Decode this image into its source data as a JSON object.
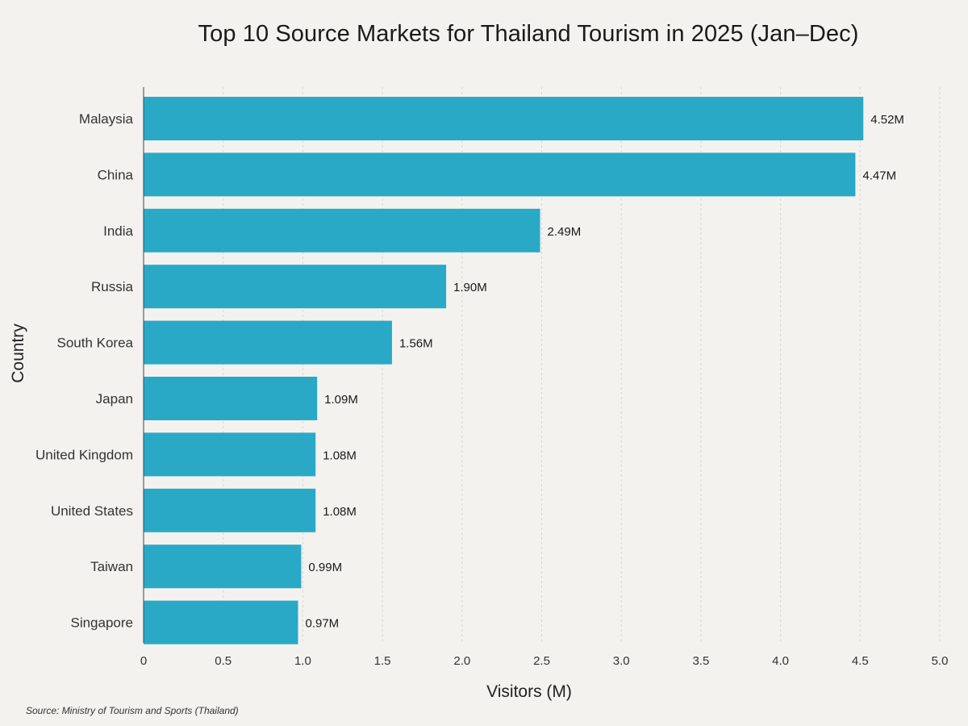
{
  "chart_data": {
    "type": "bar",
    "orientation": "horizontal",
    "title": "Top 10 Source Markets for Thailand Tourism in 2025 (Jan–Dec)",
    "xlabel": "Visitors (M)",
    "ylabel": "Country",
    "xlim": [
      0,
      5.0
    ],
    "xticks": [
      "0",
      "0.5",
      "1.0",
      "1.5",
      "2.0",
      "2.5",
      "3.0",
      "3.5",
      "4.0",
      "4.5",
      "5.0"
    ],
    "xtick_values": [
      0,
      0.5,
      1.0,
      1.5,
      2.0,
      2.5,
      3.0,
      3.5,
      4.0,
      4.5,
      5.0
    ],
    "grid": "vertical",
    "categories": [
      "Malaysia",
      "China",
      "India",
      "Russia",
      "South Korea",
      "Japan",
      "United Kingdom",
      "United States",
      "Taiwan",
      "Singapore"
    ],
    "values": [
      4.52,
      4.47,
      2.49,
      1.9,
      1.56,
      1.09,
      1.08,
      1.08,
      0.99,
      0.97
    ],
    "data_labels": [
      "4.52M",
      "4.47M",
      "2.49M",
      "1.90M",
      "1.56M",
      "1.09M",
      "1.08M",
      "1.08M",
      "0.99M",
      "0.97M"
    ],
    "bar_color": "#29a9c6"
  },
  "source_note": "Source: Ministry of Tourism and Sports (Thailand)"
}
